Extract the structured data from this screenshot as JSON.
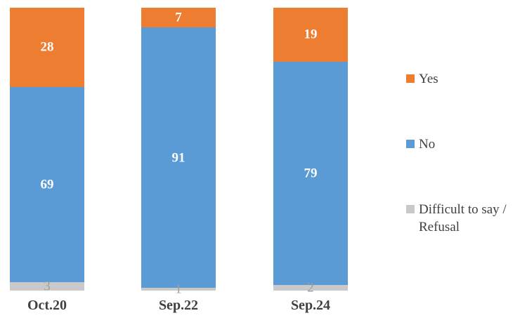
{
  "chart_data": {
    "type": "bar",
    "subtype": "stacked-column-percent",
    "orientation": "vertical",
    "categories": [
      "Oct.20",
      "Sep.22",
      "Sep.24"
    ],
    "series": [
      {
        "name": "Yes",
        "color": "#ED7D31",
        "label_color": "#FFFFFF",
        "values": [
          28,
          7,
          19
        ]
      },
      {
        "name": "No",
        "color": "#5B9BD5",
        "label_color": "#FFFFFF",
        "values": [
          69,
          91,
          79
        ]
      },
      {
        "name": "Difficult to say / Refusal",
        "color": "#C9C9C9",
        "label_color": "#9E9E9E",
        "values": [
          3,
          1,
          2
        ]
      }
    ],
    "title": "",
    "xlabel": "",
    "ylabel": "",
    "grid": false,
    "axes_visible": false,
    "legend_position": "right",
    "category_label_color": "#404040",
    "legend_text_color": "#404040",
    "background": "#FFFFFF"
  }
}
